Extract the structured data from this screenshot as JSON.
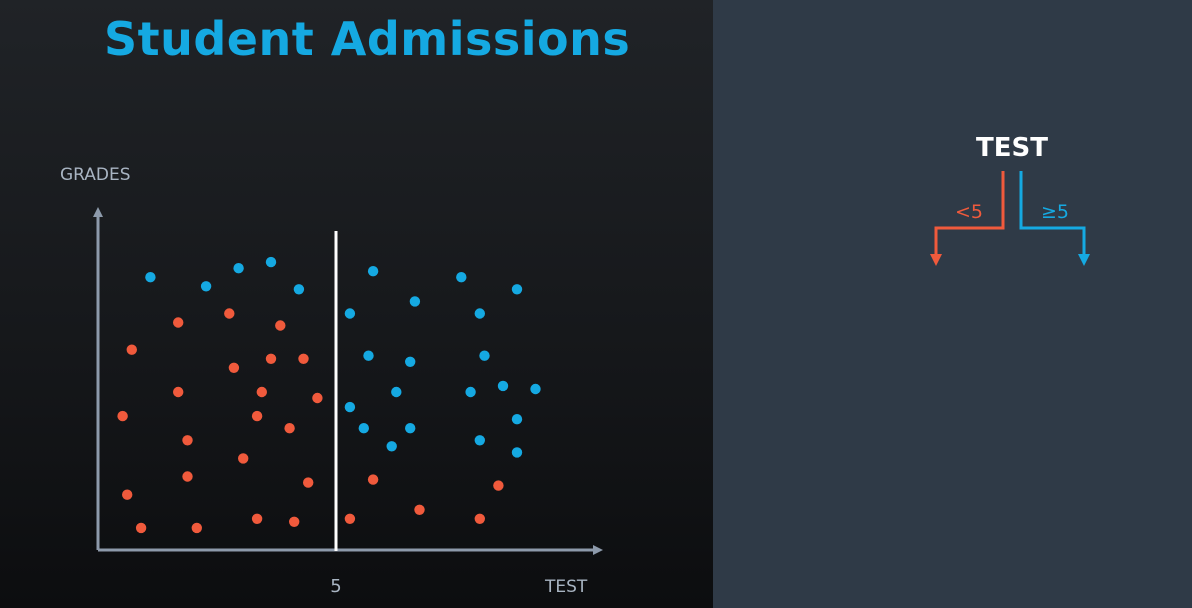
{
  "title": "Student Admissions",
  "colors": {
    "accent": "#15a9e2",
    "positive": "#15a9e2",
    "negative": "#f05a3c",
    "axis": "#8d9aab",
    "split_line": "#ffffff",
    "panel_left": "#16181b",
    "panel_right": "#2f3a47"
  },
  "chart_data": {
    "type": "scatter",
    "title": "Student Admissions",
    "xlabel": "TEST",
    "ylabel": "GRADES",
    "xlim": [
      0,
      10
    ],
    "ylim": [
      0,
      10
    ],
    "x_ticks": [
      5
    ],
    "split_value": 5,
    "grid": false,
    "series": [
      {
        "color": "#15a9e2",
        "points": [
          [
            1.0,
            8.9
          ],
          [
            2.2,
            8.6
          ],
          [
            2.9,
            9.2
          ],
          [
            3.6,
            9.4
          ],
          [
            4.2,
            8.5
          ],
          [
            5.3,
            7.7
          ],
          [
            5.8,
            9.1
          ],
          [
            6.7,
            8.1
          ],
          [
            7.7,
            8.9
          ],
          [
            8.1,
            7.7
          ],
          [
            8.9,
            8.5
          ],
          [
            5.7,
            6.3
          ],
          [
            6.6,
            6.1
          ],
          [
            8.2,
            6.3
          ],
          [
            6.3,
            5.1
          ],
          [
            7.9,
            5.1
          ],
          [
            8.6,
            5.3
          ],
          [
            9.3,
            5.2
          ],
          [
            5.3,
            4.6
          ],
          [
            5.6,
            3.9
          ],
          [
            6.6,
            3.9
          ],
          [
            8.9,
            4.2
          ],
          [
            6.2,
            3.3
          ],
          [
            8.1,
            3.5
          ],
          [
            8.9,
            3.1
          ]
        ]
      },
      {
        "color": "#f05a3c",
        "points": [
          [
            0.6,
            6.5
          ],
          [
            1.6,
            7.4
          ],
          [
            2.7,
            7.7
          ],
          [
            3.8,
            7.3
          ],
          [
            2.8,
            5.9
          ],
          [
            3.6,
            6.2
          ],
          [
            4.3,
            6.2
          ],
          [
            1.6,
            5.1
          ],
          [
            3.4,
            5.1
          ],
          [
            4.6,
            4.9
          ],
          [
            0.4,
            4.3
          ],
          [
            3.3,
            4.3
          ],
          [
            4.0,
            3.9
          ],
          [
            1.8,
            3.5
          ],
          [
            3.0,
            2.9
          ],
          [
            1.8,
            2.3
          ],
          [
            4.4,
            2.1
          ],
          [
            5.8,
            2.2
          ],
          [
            0.5,
            1.7
          ],
          [
            6.8,
            1.2
          ],
          [
            8.1,
            0.9
          ],
          [
            8.5,
            2.0
          ],
          [
            0.8,
            0.6
          ],
          [
            2.0,
            0.6
          ],
          [
            3.3,
            0.9
          ],
          [
            4.1,
            0.8
          ],
          [
            5.3,
            0.9
          ]
        ]
      }
    ]
  },
  "tree": {
    "root_label": "TEST",
    "left_branch_label": "<5",
    "right_branch_label": "≥5"
  }
}
